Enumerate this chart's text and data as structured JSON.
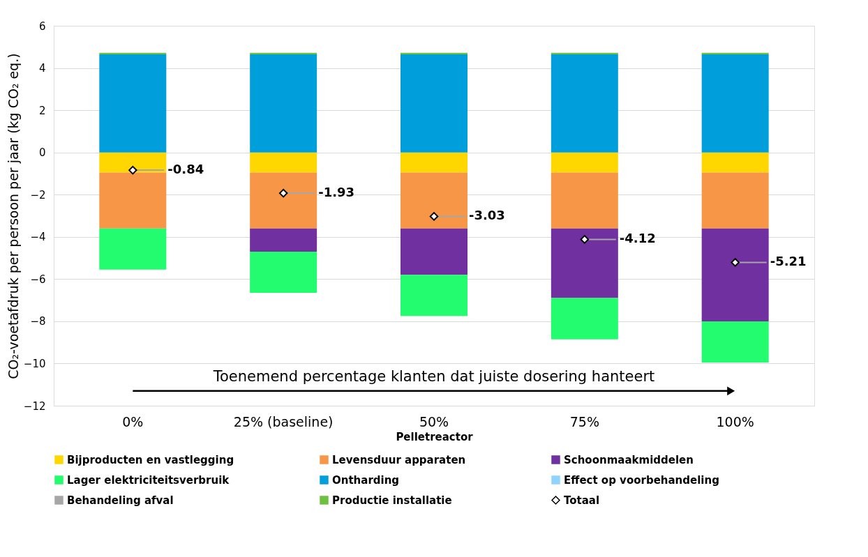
{
  "chart_data": {
    "type": "bar",
    "stacked": true,
    "xlabel": "Pelletreactor",
    "ylabel": "CO₂-voetafdruk per persoon per jaar (kg CO₂ eq.)",
    "categories": [
      "0%",
      "25% (baseline)",
      "50%",
      "75%",
      "100%"
    ],
    "ylim": [
      -12,
      6
    ],
    "yticks": [
      -12,
      -10,
      -8,
      -6,
      -4,
      -2,
      0,
      2,
      4,
      6
    ],
    "grid": "y",
    "legend": "bottom",
    "annotations": [
      "Toenemend percentage klanten dat juiste dosering hanteert"
    ],
    "series": [
      {
        "name": "Bijproducten en vastlegging",
        "color": "#ffd700",
        "values": [
          -0.95,
          -0.95,
          -0.95,
          -0.95,
          -0.95
        ]
      },
      {
        "name": "Levensduur apparaten",
        "color": "#f79646",
        "values": [
          -2.65,
          -2.65,
          -2.65,
          -2.65,
          -2.65
        ]
      },
      {
        "name": "Schoonmaakmiddelen",
        "color": "#7030a0",
        "values": [
          0,
          -1.1,
          -2.2,
          -3.3,
          -4.4
        ]
      },
      {
        "name": "Lager elektriciteitsverbruik",
        "color": "#22fc6e",
        "values": [
          -1.95,
          -1.95,
          -1.95,
          -1.95,
          -1.95
        ]
      },
      {
        "name": "Ontharding",
        "color": "#009fdb",
        "values": [
          4.65,
          4.65,
          4.65,
          4.65,
          4.65
        ]
      },
      {
        "name": "Effect op voorbehandeling",
        "color": "#8fd3fe",
        "values": [
          0,
          0,
          0,
          0,
          0
        ]
      },
      {
        "name": "Behandeling afval",
        "color": "#a6a6a6",
        "values": [
          0,
          0,
          0,
          0,
          0
        ]
      },
      {
        "name": "Productie installatie",
        "color": "#70c040",
        "values": [
          0.07,
          0.07,
          0.07,
          0.07,
          0.07
        ]
      },
      {
        "name": "Totaal",
        "type": "scatter",
        "marker": "diamond",
        "color": "#000000",
        "values": [
          -0.84,
          -1.93,
          -3.03,
          -4.12,
          -5.21
        ],
        "value_labels": [
          "-0.84",
          "-1.93",
          "-3.03",
          "-4.12",
          "-5.21"
        ]
      }
    ]
  }
}
